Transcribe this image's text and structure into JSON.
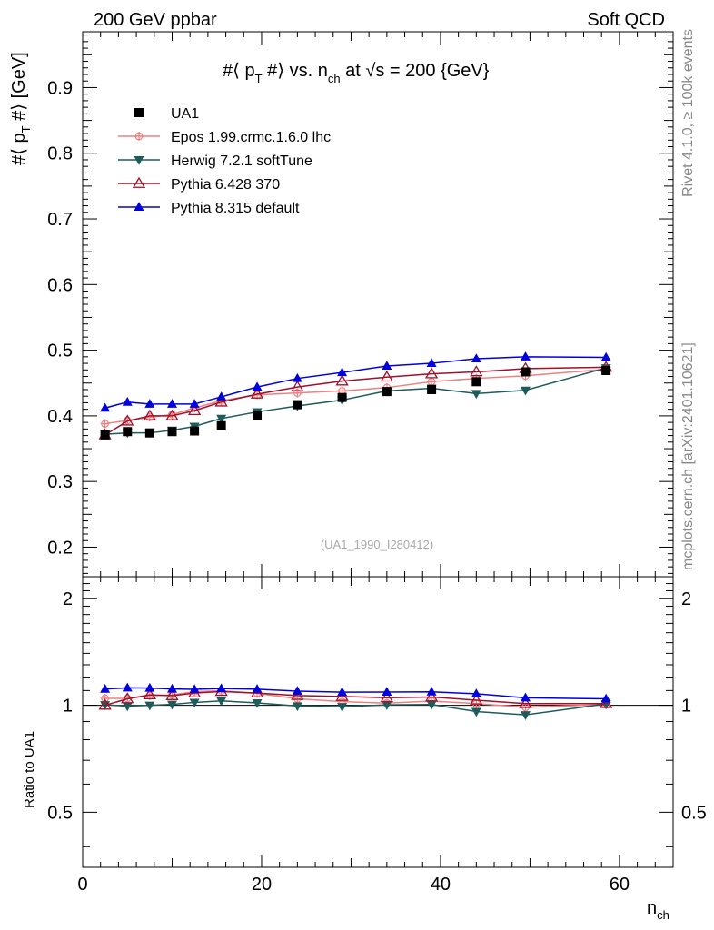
{
  "header": {
    "left": "200 GeV ppbar",
    "right": "Soft QCD"
  },
  "side": {
    "rivet": "Rivet 4.1.0, ≥ 100k events",
    "site": "mcplots.cern.ch [arXiv:2401.10621]"
  },
  "title": {
    "main": "#⟨ p",
    "sub": "T",
    "mid": " #⟩ vs. n",
    "sub2": "ch",
    "end": " at √s = 200 {GeV}"
  },
  "ylabel": {
    "main": "#⟨ p",
    "sub": "T",
    "end": " #⟩ [GeV]"
  },
  "ratio_label": "Ratio to UA1",
  "xlabel": {
    "main": "n",
    "sub": "ch"
  },
  "watermark": "(UA1_1990_I280412)",
  "chart_data": {
    "type": "line",
    "x": [
      2.5,
      5,
      7.5,
      10,
      12.5,
      15.5,
      19.5,
      24,
      29,
      34,
      39,
      44,
      49.5,
      58.5
    ],
    "xlim": [
      0,
      66
    ],
    "ylim": [
      0.155,
      0.985
    ],
    "ratio_ylim": [
      0.35,
      2.3
    ],
    "xticks": [
      0,
      20,
      40,
      60
    ],
    "yticks": [
      0.2,
      0.3,
      0.4,
      0.5,
      0.6,
      0.7,
      0.8,
      0.9
    ],
    "ratio_ticks": [
      0.5,
      1,
      2
    ],
    "series": [
      {
        "name": "UA1",
        "marker": "square",
        "color": "#000000",
        "values": [
          0.371,
          0.376,
          0.374,
          0.376,
          0.377,
          0.385,
          0.4,
          0.417,
          0.428,
          0.437,
          0.44,
          0.452,
          0.467,
          0.469
        ]
      },
      {
        "name": "Epos 1.99.crmc.1.6.0 lhc",
        "marker": "plus-circle",
        "color": "#f08080",
        "values": [
          0.388,
          0.393,
          0.398,
          0.402,
          0.412,
          0.423,
          0.432,
          0.435,
          0.438,
          0.443,
          0.452,
          0.457,
          0.461,
          0.471
        ]
      },
      {
        "name": "Herwig 7.2.1 softTune",
        "marker": "triangle-down",
        "color": "#1e5b5b",
        "values": [
          0.372,
          0.374,
          0.374,
          0.378,
          0.384,
          0.396,
          0.406,
          0.415,
          0.424,
          0.438,
          0.442,
          0.434,
          0.439,
          0.473
        ]
      },
      {
        "name": "Pythia 6.428 370",
        "marker": "triangle-open",
        "color": "#a0102a",
        "values": [
          0.371,
          0.392,
          0.4,
          0.4,
          0.408,
          0.421,
          0.433,
          0.444,
          0.453,
          0.459,
          0.464,
          0.467,
          0.472,
          0.474
        ]
      },
      {
        "name": "Pythia 8.315 default",
        "marker": "triangle-up",
        "color": "#0000dd",
        "values": [
          0.412,
          0.421,
          0.418,
          0.418,
          0.418,
          0.429,
          0.444,
          0.457,
          0.466,
          0.476,
          0.48,
          0.487,
          0.49,
          0.489
        ]
      }
    ]
  }
}
